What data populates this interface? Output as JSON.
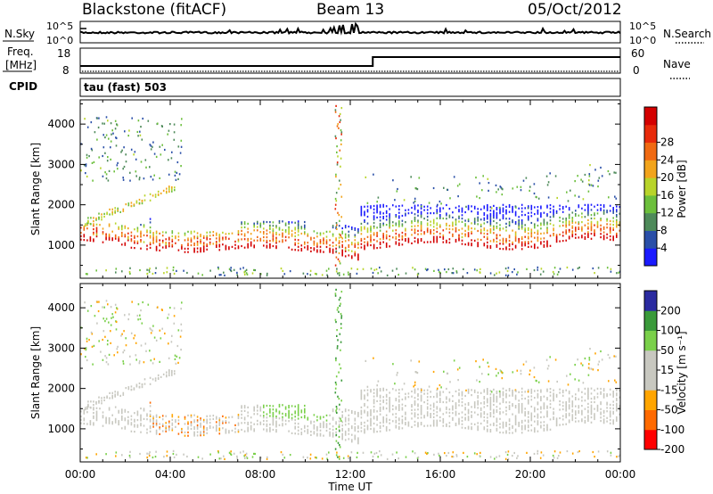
{
  "header": {
    "station": "Blackstone (fitACF)",
    "beam": "Beam 13",
    "date": "05/Oct/2012"
  },
  "noise_panel": {
    "left_label": "N.Sky",
    "right_label": "N.Search",
    "ticks_left": [
      "10^5",
      "10^0"
    ],
    "ticks_right": [
      "10^5",
      "10^0"
    ]
  },
  "freq_panel": {
    "left_label_line1": "Freq.",
    "left_label_line2": "[MHz]",
    "left_ticks": [
      "18",
      "8"
    ],
    "right_label": "Nave",
    "right_ticks": [
      "60",
      "0"
    ],
    "step_time_hours": 13.0
  },
  "cpid_panel": {
    "label": "CPID",
    "text": "tau (fast) 503"
  },
  "colors": {
    "power": [
      "#1a1aff",
      "#2a4fa8",
      "#4e8a5a",
      "#6cbf3c",
      "#b8d42a",
      "#f2a41c",
      "#f06a12",
      "#e82a0a",
      "#d40000"
    ],
    "velocity": [
      "#ff0000",
      "#ff6a00",
      "#ffa500",
      "#c8c8c0",
      "#c8c8c0",
      "#7ad04a",
      "#3a9a3a",
      "#2a2aa0"
    ]
  },
  "chart_data": [
    {
      "type": "heatmap",
      "quantity": "Power",
      "ylabel": "Slant Range [km]",
      "colorbar_label": "Power [dB]",
      "colorbar_ticks": [
        "28",
        "24",
        "20",
        "16",
        "12",
        "8",
        "4"
      ],
      "xlabel": "Time UT",
      "x_ticks": [
        "00:00",
        "04:00",
        "08:00",
        "12:00",
        "16:00",
        "20:00",
        "00:00"
      ],
      "y_ticks": [
        "1000",
        "2000",
        "3000",
        "4000"
      ],
      "xlim_hours": [
        0,
        24
      ],
      "ylim_km": [
        180,
        4600
      ],
      "power_range_db": [
        0,
        30
      ]
    },
    {
      "type": "heatmap",
      "quantity": "Velocity",
      "ylabel": "Slant Range [km]",
      "colorbar_label": "Velocity [m s⁻¹]",
      "colorbar_ticks": [
        "200",
        "100",
        "50",
        "15",
        "-15",
        "-50",
        "-100",
        "-200"
      ],
      "xlabel": "Time UT",
      "x_ticks": [
        "00:00",
        "04:00",
        "08:00",
        "12:00",
        "16:00",
        "20:00",
        "00:00"
      ],
      "y_ticks": [
        "1000",
        "2000",
        "3000",
        "4000"
      ],
      "xlim_hours": [
        0,
        24
      ],
      "ylim_km": [
        180,
        4600
      ],
      "velocity_range_ms": [
        -200,
        200
      ]
    }
  ]
}
